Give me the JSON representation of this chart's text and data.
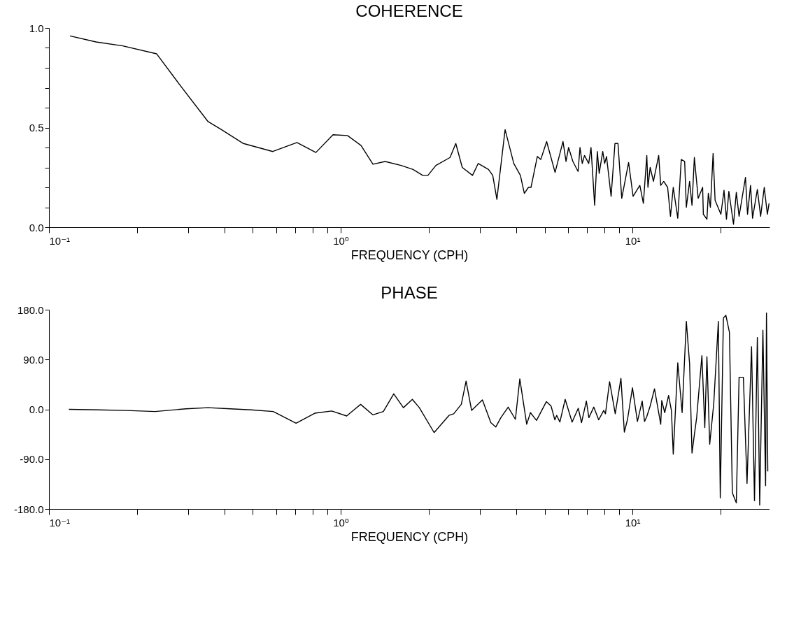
{
  "chart_data": [
    {
      "type": "line",
      "title": "COHERENCE",
      "xlabel": "FREQUENCY (CPH)",
      "color": "#000000",
      "line_style": "solid",
      "log": "x",
      "xlim": [
        0.1,
        29.5
      ],
      "xticks": [
        {
          "value": 0.1,
          "label": "10⁻¹"
        },
        {
          "value": 0.2,
          "label": null
        },
        {
          "value": 0.3,
          "label": null
        },
        {
          "value": 0.4,
          "label": null
        },
        {
          "value": 0.5,
          "label": null
        },
        {
          "value": 0.6,
          "label": null
        },
        {
          "value": 0.7,
          "label": null
        },
        {
          "value": 0.8,
          "label": null
        },
        {
          "value": 0.9,
          "label": null
        },
        {
          "value": 1,
          "label": "10⁰"
        },
        {
          "value": 2,
          "label": null
        },
        {
          "value": 3,
          "label": null
        },
        {
          "value": 4,
          "label": null
        },
        {
          "value": 5,
          "label": null
        },
        {
          "value": 6,
          "label": null
        },
        {
          "value": 7,
          "label": null
        },
        {
          "value": 8,
          "label": null
        },
        {
          "value": 9,
          "label": null
        },
        {
          "value": 10,
          "label": "10¹"
        },
        {
          "value": 20,
          "label": null
        }
      ],
      "ylim": [
        0,
        1
      ],
      "yticks": [
        {
          "value": 0,
          "label": "0.0"
        },
        {
          "value": 0.1,
          "label": null
        },
        {
          "value": 0.2,
          "label": null
        },
        {
          "value": 0.3,
          "label": null
        },
        {
          "value": 0.4,
          "label": null
        },
        {
          "value": 0.5,
          "label": "0.5"
        },
        {
          "value": 0.6,
          "label": null
        },
        {
          "value": 0.7,
          "label": null
        },
        {
          "value": 0.8,
          "label": null
        },
        {
          "value": 0.9,
          "label": null
        },
        {
          "value": 1,
          "label": "1.0"
        }
      ],
      "x": [
        0.118,
        0.145,
        0.179,
        0.234,
        0.279,
        0.351,
        0.39,
        0.464,
        0.585,
        0.708,
        0.822,
        0.941,
        1.055,
        1.174,
        1.29,
        1.42,
        1.61,
        1.77,
        1.91,
        1.99,
        2.12,
        2.37,
        2.48,
        2.61,
        2.83,
        2.96,
        3.21,
        3.32,
        3.43,
        3.66,
        3.92,
        4.13,
        4.26,
        4.4,
        4.49,
        4.72,
        4.85,
        5.08,
        5.43,
        5.78,
        5.92,
        6.04,
        6.25,
        6.51,
        6.61,
        6.73,
        6.85,
        7.08,
        7.21,
        7.42,
        7.58,
        7.69,
        7.91,
        8.03,
        8.15,
        8.45,
        8.71,
        8.92,
        9.19,
        9.7,
        10.05,
        10.6,
        10.9,
        11.2,
        11.3,
        11.5,
        11.8,
        12.3,
        12.5,
        12.8,
        13.2,
        13.5,
        13.8,
        14.3,
        14.7,
        15.1,
        15.3,
        15.7,
        16.0,
        16.3,
        16.8,
        17.4,
        17.5,
        18.0,
        18.2,
        18.5,
        18.9,
        19.2,
        20.1,
        20.6,
        21.0,
        21.4,
        22.2,
        22.7,
        23.2,
        24.4,
        24.8,
        25.4,
        25.8,
        26.8,
        27.5,
        28.3,
        29.0,
        29.4
      ],
      "values": [
        0.96,
        0.93,
        0.91,
        0.87,
        0.72,
        0.53,
        0.49,
        0.42,
        0.38,
        0.425,
        0.375,
        0.464,
        0.46,
        0.41,
        0.316,
        0.33,
        0.31,
        0.29,
        0.26,
        0.26,
        0.31,
        0.35,
        0.42,
        0.3,
        0.26,
        0.32,
        0.29,
        0.26,
        0.14,
        0.49,
        0.32,
        0.26,
        0.17,
        0.2,
        0.2,
        0.355,
        0.34,
        0.43,
        0.275,
        0.43,
        0.33,
        0.4,
        0.33,
        0.28,
        0.4,
        0.32,
        0.36,
        0.32,
        0.4,
        0.11,
        0.38,
        0.27,
        0.38,
        0.32,
        0.355,
        0.155,
        0.42,
        0.42,
        0.145,
        0.325,
        0.155,
        0.21,
        0.12,
        0.36,
        0.2,
        0.3,
        0.23,
        0.36,
        0.21,
        0.23,
        0.2,
        0.055,
        0.2,
        0.045,
        0.34,
        0.33,
        0.1,
        0.23,
        0.11,
        0.35,
        0.145,
        0.2,
        0.065,
        0.04,
        0.17,
        0.1,
        0.37,
        0.135,
        0.065,
        0.185,
        0.04,
        0.18,
        0.015,
        0.175,
        0.055,
        0.25,
        0.065,
        0.21,
        0.045,
        0.19,
        0.055,
        0.2,
        0.065,
        0.12
      ]
    },
    {
      "type": "line",
      "title": "PHASE",
      "xlabel": "FREQUENCY (CPH)",
      "color": "#000000",
      "line_style": "solid",
      "log": "x",
      "xlim": [
        0.1,
        29.5
      ],
      "xticks": [
        {
          "value": 0.1,
          "label": "10⁻¹"
        },
        {
          "value": 0.2,
          "label": null
        },
        {
          "value": 0.3,
          "label": null
        },
        {
          "value": 0.4,
          "label": null
        },
        {
          "value": 0.5,
          "label": null
        },
        {
          "value": 0.6,
          "label": null
        },
        {
          "value": 0.7,
          "label": null
        },
        {
          "value": 0.8,
          "label": null
        },
        {
          "value": 0.9,
          "label": null
        },
        {
          "value": 1,
          "label": "10⁰"
        },
        {
          "value": 2,
          "label": null
        },
        {
          "value": 3,
          "label": null
        },
        {
          "value": 4,
          "label": null
        },
        {
          "value": 5,
          "label": null
        },
        {
          "value": 6,
          "label": null
        },
        {
          "value": 7,
          "label": null
        },
        {
          "value": 8,
          "label": null
        },
        {
          "value": 9,
          "label": null
        },
        {
          "value": 10,
          "label": "10¹"
        },
        {
          "value": 20,
          "label": null
        }
      ],
      "ylim": [
        -180,
        180
      ],
      "yticks": [
        {
          "value": -180,
          "label": "-180.0"
        },
        {
          "value": -90,
          "label": "-90.0"
        },
        {
          "value": 0,
          "label": "0.0"
        },
        {
          "value": 90,
          "label": "90.0"
        },
        {
          "value": 180,
          "label": "180.0"
        }
      ],
      "x": [
        0.117,
        0.147,
        0.184,
        0.231,
        0.295,
        0.351,
        0.418,
        0.493,
        0.587,
        0.703,
        0.815,
        0.931,
        1.048,
        1.17,
        1.29,
        1.4,
        1.52,
        1.64,
        1.76,
        1.86,
        2.09,
        2.35,
        2.44,
        2.59,
        2.69,
        2.81,
        3.06,
        3.27,
        3.4,
        3.54,
        3.75,
        3.97,
        4.11,
        4.34,
        4.47,
        4.69,
        5.07,
        5.26,
        5.42,
        5.5,
        5.64,
        5.88,
        6.21,
        6.52,
        6.69,
        6.95,
        7.09,
        7.37,
        7.66,
        7.97,
        8.08,
        8.35,
        8.73,
        9.13,
        9.38,
        9.62,
        10.0,
        10.4,
        10.8,
        11.0,
        11.2,
        11.5,
        11.9,
        12.5,
        12.6,
        12.9,
        13.3,
        13.6,
        13.8,
        14.3,
        14.8,
        15.3,
        15.7,
        16.0,
        16.3,
        16.6,
        17.3,
        17.7,
        18.0,
        18.4,
        19.0,
        19.7,
        20.0,
        20.5,
        20.9,
        21.5,
        22.0,
        22.7,
        23.2,
        24.0,
        24.7,
        25.6,
        26.2,
        26.8,
        27.3,
        28.0,
        28.6,
        28.8,
        29.1
      ],
      "values": [
        0,
        -1,
        -2,
        -4,
        1,
        3,
        1,
        -1,
        -4,
        -25,
        -7,
        -3,
        -12,
        9,
        -10,
        -4,
        28,
        3,
        18,
        3,
        -42,
        -11,
        -8,
        9,
        51,
        -2,
        17,
        -24,
        -32,
        -15,
        4,
        -18,
        55,
        -27,
        -6,
        -20,
        14,
        6,
        -19,
        -11,
        -23,
        18,
        -23,
        2,
        -24,
        15,
        -15,
        4,
        -19,
        -2,
        -8,
        50,
        -8,
        56,
        -41,
        -18,
        39,
        -22,
        15,
        -22,
        -13,
        6,
        37,
        -27,
        16,
        -6,
        25,
        -2,
        -81,
        84,
        -6,
        159,
        82,
        -79,
        -46,
        -15,
        97,
        -33,
        95,
        -63,
        11,
        159,
        -160,
        165,
        170,
        139,
        -151,
        -169,
        58,
        58,
        -134,
        113,
        -165,
        130,
        -173,
        143,
        -138,
        174,
        -112
      ]
    }
  ]
}
